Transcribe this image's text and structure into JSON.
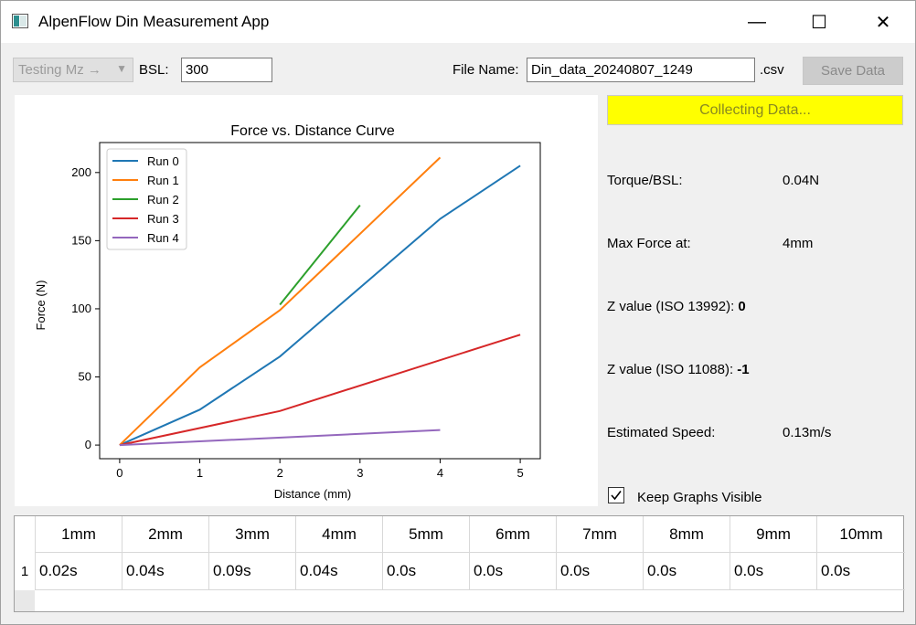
{
  "window": {
    "title": "AlpenFlow Din Measurement App",
    "minimize_icon": "—",
    "maximize_icon": "☐",
    "close_icon": "✕"
  },
  "toolbar": {
    "mode_select": "Testing Mz →",
    "bsl_label": "BSL:",
    "bsl_value": "300",
    "file_name_label": "File Name:",
    "file_name_value": "Din_data_20240807_1249",
    "file_ext": ".csv",
    "save_label": "Save Data"
  },
  "status": {
    "collecting_label": "Collecting Data...",
    "collecting_color": "#ffff00"
  },
  "stats": {
    "torque_label": "Torque/BSL:",
    "torque_value": "0.04N",
    "maxforce_label": "Max Force at:",
    "maxforce_value": "4mm",
    "z13992_label": "Z value (ISO 13992):",
    "z13992_value": "0",
    "z11088_label": "Z value (ISO 11088):",
    "z11088_value": "-1",
    "speed_label": "Estimated Speed:",
    "speed_value": "0.13m/s"
  },
  "keep_graphs": {
    "label": "Keep Graphs Visible",
    "checked": true
  },
  "table": {
    "headers": [
      "1mm",
      "2mm",
      "3mm",
      "4mm",
      "5mm",
      "6mm",
      "7mm",
      "8mm",
      "9mm",
      "10mm"
    ],
    "rows": [
      {
        "index": "1",
        "cells": [
          "0.02s",
          "0.04s",
          "0.09s",
          "0.04s",
          "0.0s",
          "0.0s",
          "0.0s",
          "0.0s",
          "0.0s",
          "0.0s"
        ]
      }
    ]
  },
  "chart_data": {
    "type": "line",
    "title": "Force vs. Distance Curve",
    "xlabel": "Distance (mm)",
    "ylabel": "Force (N)",
    "xlim": [
      -0.25,
      5.25
    ],
    "ylim": [
      -10,
      222
    ],
    "xticks": [
      0,
      1,
      2,
      3,
      4,
      5
    ],
    "yticks": [
      0,
      50,
      100,
      150,
      200
    ],
    "legend": "top-left",
    "grid": false,
    "series": [
      {
        "name": "Run 0",
        "color": "#1f77b4",
        "x": [
          0,
          1,
          2,
          4,
          5
        ],
        "y": [
          0,
          26,
          65,
          166,
          205
        ]
      },
      {
        "name": "Run 1",
        "color": "#ff7f0e",
        "x": [
          0,
          1,
          2,
          4
        ],
        "y": [
          0,
          57,
          99,
          211
        ]
      },
      {
        "name": "Run 2",
        "color": "#2ca02c",
        "x": [
          2,
          3
        ],
        "y": [
          103,
          176
        ]
      },
      {
        "name": "Run 3",
        "color": "#d62728",
        "x": [
          0,
          2,
          5
        ],
        "y": [
          0,
          25,
          81
        ]
      },
      {
        "name": "Run 4",
        "color": "#9467bd",
        "x": [
          0,
          4
        ],
        "y": [
          0,
          11
        ]
      }
    ]
  }
}
